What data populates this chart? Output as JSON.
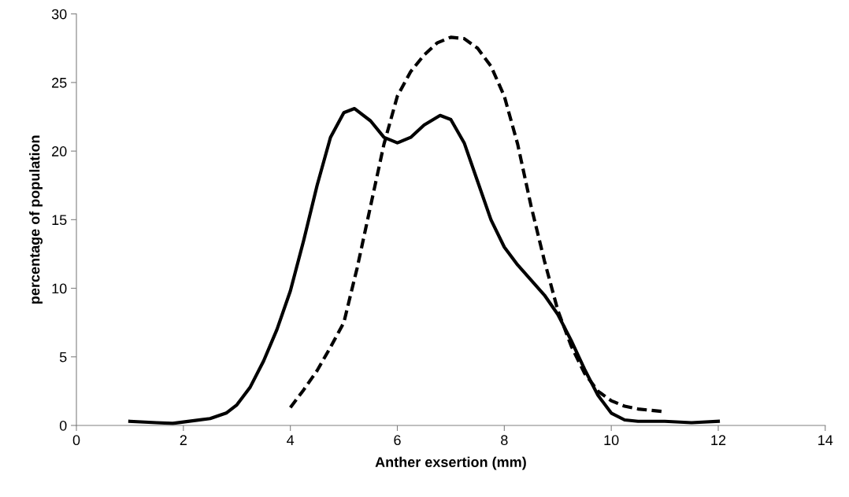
{
  "chart_data": {
    "type": "line",
    "xlabel": "Anther exsertion (mm)",
    "ylabel": "percentage of population",
    "xlim": [
      0,
      14
    ],
    "xticks": [
      0,
      2,
      4,
      6,
      8,
      10,
      12,
      14
    ],
    "ylim": [
      0,
      30
    ],
    "yticks": [
      0,
      5,
      10,
      15,
      20,
      25,
      30
    ],
    "grid": false,
    "legend": false,
    "marker": "none",
    "series": [
      {
        "color": "#000000",
        "line_style": "solid",
        "x": [
          1,
          1.5,
          1.8,
          2,
          2.5,
          2.8,
          3,
          3.25,
          3.5,
          3.75,
          4,
          4.25,
          4.5,
          4.75,
          5,
          5.2,
          5.5,
          5.75,
          6,
          6.25,
          6.5,
          6.8,
          7,
          7.25,
          7.5,
          7.75,
          8,
          8.25,
          8.5,
          8.75,
          9,
          9.25,
          9.5,
          9.75,
          10,
          10.25,
          10.5,
          11,
          11.5,
          12
        ],
        "values": [
          0.3,
          0.2,
          0.15,
          0.25,
          0.5,
          0.9,
          1.5,
          2.8,
          4.7,
          7.0,
          9.8,
          13.5,
          17.5,
          21.0,
          22.8,
          23.1,
          22.2,
          21.0,
          20.6,
          21.0,
          21.9,
          22.6,
          22.3,
          20.6,
          17.8,
          15.0,
          13.0,
          11.7,
          10.6,
          9.5,
          8.1,
          6.2,
          4.1,
          2.2,
          0.9,
          0.4,
          0.3,
          0.3,
          0.2,
          0.3
        ]
      },
      {
        "color": "#000000",
        "line_style": "dashed",
        "x": [
          4,
          4.25,
          4.5,
          4.75,
          5,
          5.25,
          5.5,
          5.75,
          6,
          6.25,
          6.5,
          6.75,
          7,
          7.25,
          7.5,
          7.75,
          8,
          8.25,
          8.5,
          8.75,
          9,
          9.25,
          9.5,
          9.75,
          10,
          10.25,
          10.5,
          11
        ],
        "values": [
          1.3,
          2.6,
          4.0,
          5.7,
          7.5,
          11.5,
          16.0,
          20.5,
          24.0,
          25.8,
          27.0,
          27.9,
          28.3,
          28.2,
          27.5,
          26.2,
          24.0,
          20.5,
          16.0,
          12.0,
          8.4,
          5.8,
          3.8,
          2.5,
          1.8,
          1.4,
          1.2,
          1.0
        ]
      }
    ]
  }
}
